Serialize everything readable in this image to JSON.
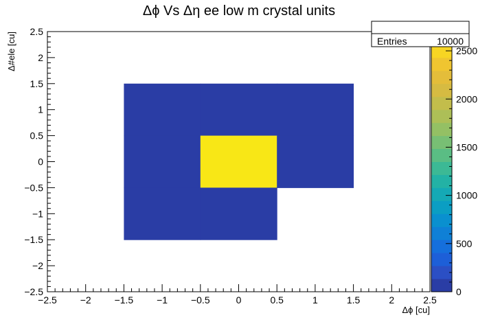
{
  "chart_data": {
    "type": "heatmap",
    "title": "Δϕ Vs Δη ee low m crystal units",
    "xlabel": "Δϕ [cu]",
    "ylabel": "Δ#ele [cu]",
    "xlim": [
      -2.5,
      2.5
    ],
    "ylim": [
      -2.5,
      2.5
    ],
    "zlim": [
      0,
      2700
    ],
    "x_ticks": [
      "−2.5",
      "−2",
      "−1.5",
      "−1",
      "−0.5",
      "0",
      "0.5",
      "1",
      "1.5",
      "2",
      "2.5"
    ],
    "y_ticks": [
      "−2.5",
      "−2",
      "−1.5",
      "−1",
      "−0.5",
      "0",
      "0.5",
      "1",
      "1.5",
      "2",
      "2.5"
    ],
    "z_ticks": [
      "0",
      "500",
      "1000",
      "1500",
      "2000",
      "2500"
    ],
    "cells": [
      {
        "x": [
          -1.5,
          -0.5
        ],
        "y": [
          0.5,
          1.5
        ],
        "value": 0
      },
      {
        "x": [
          -0.5,
          0.5
        ],
        "y": [
          0.5,
          1.5
        ],
        "value": 0
      },
      {
        "x": [
          0.5,
          1.5
        ],
        "y": [
          0.5,
          1.5
        ],
        "value": 0
      },
      {
        "x": [
          -1.5,
          -0.5
        ],
        "y": [
          -0.5,
          0.5
        ],
        "value": 0
      },
      {
        "x": [
          -0.5,
          0.5
        ],
        "y": [
          -0.5,
          0.5
        ],
        "value": 10000
      },
      {
        "x": [
          0.5,
          1.5
        ],
        "y": [
          -0.5,
          0.5
        ],
        "value": 0
      },
      {
        "x": [
          -1.5,
          -0.5
        ],
        "y": [
          -1.5,
          -0.5
        ],
        "value": 0
      },
      {
        "x": [
          -0.5,
          0.5
        ],
        "y": [
          -1.5,
          -0.5
        ],
        "value": 0
      }
    ],
    "stats": {
      "label": "Entries",
      "value": "10000"
    },
    "grid": false,
    "colors": {
      "low": "#2a3da5",
      "high": "#f8fa0e"
    },
    "palette": [
      "#2a3da5",
      "#2b4fc4",
      "#1d5fd8",
      "#156fdc",
      "#0f80d6",
      "#0a90cf",
      "#0b9ec3",
      "#15a9b5",
      "#23b2a5",
      "#3cb995",
      "#5abd84",
      "#78bf74",
      "#94c064",
      "#adbf57",
      "#c3bd4b",
      "#d6bb42",
      "#e4bd3a",
      "#f0c530",
      "#f7d523",
      "#f8e716"
    ]
  }
}
